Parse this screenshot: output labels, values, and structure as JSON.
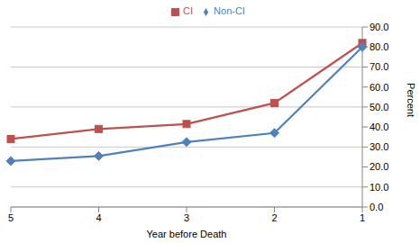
{
  "chart_data": {
    "type": "line",
    "x_label": "Year before Death",
    "y_label": "Percent",
    "categories": [
      "5",
      "4",
      "3",
      "2",
      "1"
    ],
    "series": [
      {
        "name": "CI",
        "color": "#c0504d",
        "marker": "square",
        "values": [
          34,
          39,
          41.5,
          52,
          82
        ]
      },
      {
        "name": "Non-CI",
        "color": "#4f81bd",
        "marker": "diamond",
        "values": [
          23,
          25.5,
          32.5,
          37,
          80
        ]
      }
    ],
    "ylim": [
      0,
      90
    ],
    "yticks": [
      {
        "value": 0,
        "label": "0.0"
      },
      {
        "value": 10,
        "label": "10.0"
      },
      {
        "value": 20,
        "label": "20.0"
      },
      {
        "value": 30,
        "label": "30.0"
      },
      {
        "value": 40,
        "label": "40.0"
      },
      {
        "value": 50,
        "label": "50.0"
      },
      {
        "value": 60,
        "label": "60.0"
      },
      {
        "value": 70,
        "label": "70.0"
      },
      {
        "value": 80,
        "label": "80.0"
      },
      {
        "value": 90,
        "label": "90.0"
      }
    ],
    "grid": true,
    "legend": "top"
  }
}
